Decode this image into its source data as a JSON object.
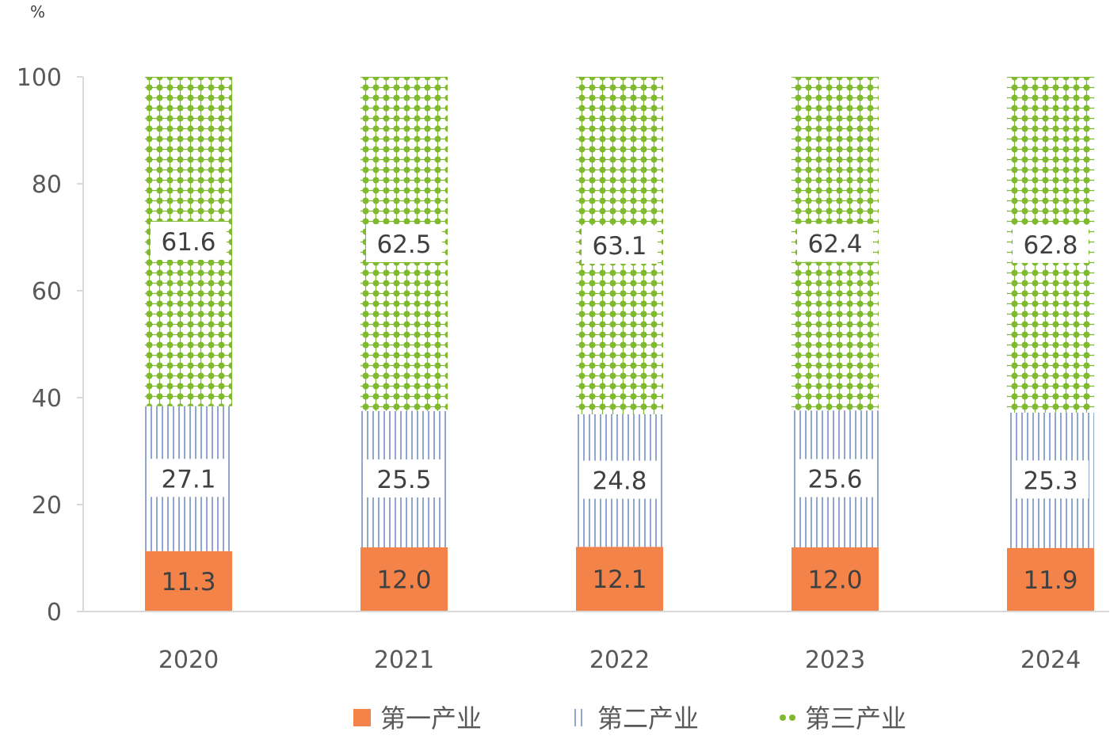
{
  "chart_data": {
    "type": "bar",
    "stacked": true,
    "y_unit": "%",
    "categories": [
      "2020",
      "2021",
      "2022",
      "2023",
      "2024"
    ],
    "series": [
      {
        "name": "第一产业",
        "values": [
          11.3,
          12.0,
          12.1,
          12.0,
          11.9
        ],
        "color": "#f4834a",
        "pattern": "solid"
      },
      {
        "name": "第二产业",
        "values": [
          27.1,
          25.5,
          24.8,
          25.6,
          25.3
        ],
        "color": "#8fa6cf",
        "pattern": "vertical-lines"
      },
      {
        "name": "第三产业",
        "values": [
          61.6,
          62.5,
          63.1,
          62.4,
          62.8
        ],
        "color": "#7fb92e",
        "pattern": "dots"
      }
    ],
    "ylim": [
      0,
      100
    ],
    "yticks": [
      0,
      20,
      40,
      60,
      80,
      100
    ],
    "grid": false,
    "legend_position": "bottom"
  }
}
